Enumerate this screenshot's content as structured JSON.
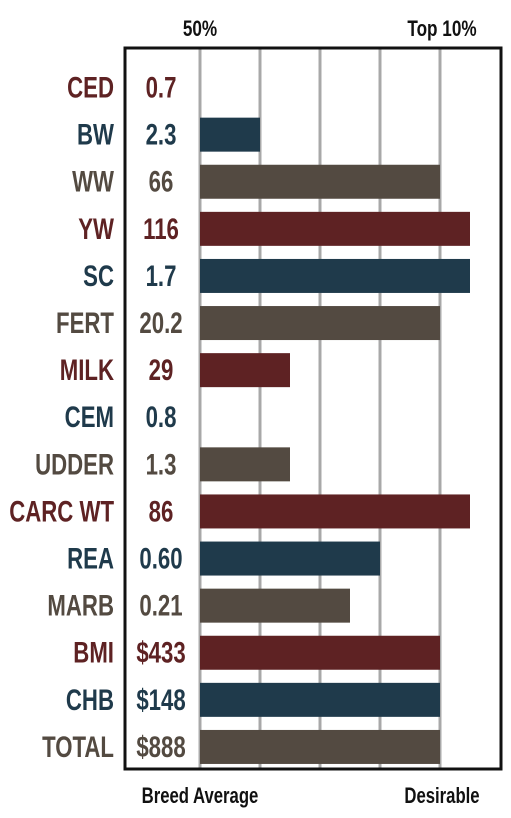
{
  "chart_data": {
    "type": "bar",
    "orientation": "horizontal",
    "top_labels": [
      "50%",
      "Top 10%"
    ],
    "bottom_labels": [
      "Breed Average",
      "Desirable"
    ],
    "xlim": [
      0,
      9
    ],
    "grid": true,
    "colors": {
      "red": "#5e2223",
      "blue": "#1f3a4b",
      "gray": "#534a41",
      "gridline": "#a8a8a8",
      "frame": "#111111"
    },
    "rows": [
      {
        "name": "CED",
        "value_label": "0.7",
        "bar": 0,
        "color": "red"
      },
      {
        "name": "BW",
        "value_label": "2.3",
        "bar": 2,
        "color": "blue"
      },
      {
        "name": "WW",
        "value_label": "66",
        "bar": 8,
        "color": "gray"
      },
      {
        "name": "YW",
        "value_label": "116",
        "bar": 9,
        "color": "red"
      },
      {
        "name": "SC",
        "value_label": "1.7",
        "bar": 9,
        "color": "blue"
      },
      {
        "name": "FERT",
        "value_label": "20.2",
        "bar": 8,
        "color": "gray"
      },
      {
        "name": "MILK",
        "value_label": "29",
        "bar": 3,
        "color": "red"
      },
      {
        "name": "CEM",
        "value_label": "0.8",
        "bar": 0,
        "color": "blue"
      },
      {
        "name": "UDDER",
        "value_label": "1.3",
        "bar": 3,
        "color": "gray"
      },
      {
        "name": "CARC WT",
        "value_label": "86",
        "bar": 9,
        "color": "red"
      },
      {
        "name": "REA",
        "value_label": "0.60",
        "bar": 6,
        "color": "blue"
      },
      {
        "name": "MARB",
        "value_label": "0.21",
        "bar": 5,
        "color": "gray"
      },
      {
        "name": "BMI",
        "value_label": "$433",
        "bar": 8,
        "color": "red"
      },
      {
        "name": "CHB",
        "value_label": "$148",
        "bar": 8,
        "color": "blue"
      },
      {
        "name": "TOTAL",
        "value_label": "$888",
        "bar": 8,
        "color": "gray"
      }
    ]
  }
}
